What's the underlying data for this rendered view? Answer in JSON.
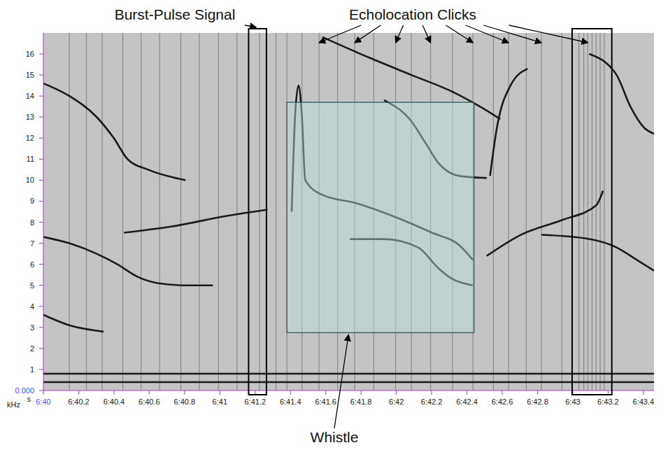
{
  "chart_data": {
    "type": "line",
    "x_label": "s",
    "y_label": "kHz",
    "grid": false,
    "xlim": [
      400,
      403.46
    ],
    "ylim": [
      0,
      17
    ],
    "xticks": [
      {
        "value": 400,
        "label": "6:40"
      },
      {
        "value": 400.2,
        "label": "6:40.2"
      },
      {
        "value": 400.4,
        "label": "6:40.4"
      },
      {
        "value": 400.6,
        "label": "6:40.6"
      },
      {
        "value": 400.8,
        "label": "6:40.8"
      },
      {
        "value": 401,
        "label": "6:41"
      },
      {
        "value": 401.2,
        "label": "6:41.2"
      },
      {
        "value": 401.4,
        "label": "6:41.4"
      },
      {
        "value": 401.6,
        "label": "6:41.6"
      },
      {
        "value": 401.8,
        "label": "6:41.8"
      },
      {
        "value": 402,
        "label": "6:42"
      },
      {
        "value": 402.2,
        "label": "6:42.2"
      },
      {
        "value": 402.4,
        "label": "6:42.4"
      },
      {
        "value": 402.6,
        "label": "6:42.6"
      },
      {
        "value": 402.8,
        "label": "6:42.8"
      },
      {
        "value": 403,
        "label": "6:43"
      },
      {
        "value": 403.2,
        "label": "6:43.2"
      },
      {
        "value": 403.4,
        "label": "6:43.4"
      }
    ],
    "yticks": [
      {
        "value": 0,
        "label": "0.000"
      },
      1,
      2,
      3,
      4,
      5,
      6,
      7,
      8,
      9,
      10,
      11,
      12,
      13,
      14,
      15,
      16
    ],
    "series": [
      {
        "color": "#1a1a1a",
        "x": [
          400.0,
          400.147,
          400.302,
          400.419,
          400.535,
          400.651,
          400.806,
          400.961
        ],
        "values": [
          7.3,
          7.0,
          6.5,
          6.0,
          5.4,
          5.1,
          5.0,
          5.0
        ]
      },
      {
        "color": "#1a1a1a",
        "x": [
          400.0,
          400.147,
          400.302,
          400.399,
          400.477,
          400.593,
          400.806
        ],
        "values": [
          14.6,
          14.0,
          13.0,
          12.0,
          11.0,
          10.5,
          10.0
        ]
      },
      {
        "color": "#1a1a1a",
        "x": [
          400.457,
          400.729,
          401.039,
          401.271
        ],
        "values": [
          7.5,
          7.8,
          8.3,
          8.6
        ]
      },
      {
        "color": "#1a1a1a",
        "x": [
          401.407,
          401.426,
          401.446,
          401.465,
          401.484,
          401.581,
          401.775,
          402.008,
          402.202,
          402.357,
          402.434
        ],
        "values": [
          8.5,
          13.0,
          14.5,
          13.0,
          10.0,
          9.3,
          8.9,
          8.2,
          7.5,
          6.9,
          6.2
        ]
      },
      {
        "color": "#1a1a1a",
        "x": [
          401.736,
          401.93,
          402.124,
          402.24,
          402.318,
          402.434
        ],
        "values": [
          7.2,
          7.2,
          6.8,
          5.8,
          5.3,
          5.0
        ]
      },
      {
        "color": "#1a1a1a",
        "x": [
          401.581,
          401.853,
          402.085,
          402.318,
          402.473,
          402.589
        ],
        "values": [
          16.8,
          15.8,
          15.0,
          14.2,
          13.5,
          12.9
        ]
      },
      {
        "color": "#1a1a1a",
        "x": [
          401.93,
          402.085,
          402.163,
          402.24,
          402.357,
          402.512
        ],
        "values": [
          13.8,
          12.8,
          11.8,
          10.8,
          10.2,
          10.1
        ]
      },
      {
        "color": "#1a1a1a",
        "x": [
          402.512,
          402.705,
          402.938,
          403.132,
          403.171
        ],
        "values": [
          6.4,
          7.4,
          8.1,
          8.8,
          9.5
        ]
      },
      {
        "color": "#1a1a1a",
        "x": [
          402.822,
          403.093,
          403.248,
          403.364,
          403.46
        ],
        "values": [
          7.4,
          7.2,
          6.8,
          6.2,
          5.7
        ]
      },
      {
        "color": "#1a1a1a",
        "x": [
          403.093,
          403.248,
          403.326,
          403.403,
          403.46
        ],
        "values": [
          16.0,
          15.0,
          13.5,
          12.5,
          12.2
        ]
      },
      {
        "color": "#1a1a1a",
        "x": [
          402.531,
          402.57,
          402.647,
          402.744
        ],
        "values": [
          10.2,
          12.5,
          14.5,
          15.3
        ]
      },
      {
        "color": "#1a1a1a",
        "x": [
          400.0,
          400.147,
          400.341
        ],
        "values": [
          3.6,
          3.1,
          2.8
        ]
      },
      {
        "color": "#1a1a1a",
        "x": [
          400.0,
          403.46
        ],
        "values": [
          0.8,
          0.8
        ]
      },
      {
        "color": "#1a1a1a",
        "x": [
          400.0,
          403.46
        ],
        "values": [
          0.4,
          0.4
        ]
      }
    ],
    "clicks": [
      400.147,
      400.244,
      400.333,
      400.45,
      400.554,
      400.659,
      400.779,
      400.884,
      400.992,
      401.097,
      401.225,
      401.318,
      401.38,
      401.465,
      401.562,
      401.667,
      401.764,
      401.872,
      401.996,
      402.085,
      402.194,
      402.318,
      402.434,
      402.55,
      402.636,
      402.736,
      402.822,
      402.938,
      403.035,
      403.062,
      403.085,
      403.109,
      403.132,
      403.155,
      403.178
    ],
    "annotations": [
      {
        "text": "Burst-Pulse Signal",
        "box_x": [
          401.163,
          401.264
        ],
        "box_y": [
          0,
          17
        ]
      },
      {
        "text": "Echolocation Clicks",
        "targets": [
          401.562,
          401.764,
          401.996,
          402.194,
          402.434,
          402.636,
          402.822,
          403.085
        ],
        "box_x": [
          402.996,
          403.221
        ],
        "box_y": [
          0,
          17
        ]
      },
      {
        "text": "Whistle",
        "box_x": [
          401.38,
          402.44
        ],
        "box_y": [
          2.75,
          13.7
        ]
      }
    ]
  }
}
